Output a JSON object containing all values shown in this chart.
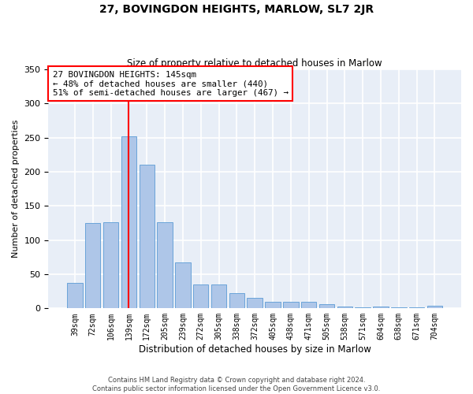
{
  "title": "27, BOVINGDON HEIGHTS, MARLOW, SL7 2JR",
  "subtitle": "Size of property relative to detached houses in Marlow",
  "xlabel": "Distribution of detached houses by size in Marlow",
  "ylabel": "Number of detached properties",
  "bar_labels": [
    "39sqm",
    "72sqm",
    "106sqm",
    "139sqm",
    "172sqm",
    "205sqm",
    "239sqm",
    "272sqm",
    "305sqm",
    "338sqm",
    "372sqm",
    "405sqm",
    "438sqm",
    "471sqm",
    "505sqm",
    "538sqm",
    "571sqm",
    "604sqm",
    "638sqm",
    "671sqm",
    "704sqm"
  ],
  "bar_values": [
    37,
    125,
    126,
    252,
    211,
    126,
    67,
    35,
    35,
    22,
    15,
    10,
    10,
    10,
    6,
    3,
    1,
    3,
    1,
    1,
    4
  ],
  "bar_color": "#aec6e8",
  "bar_edge_color": "#5b9bd5",
  "background_color": "#e8eef7",
  "grid_color": "#ffffff",
  "vline_x": 3.0,
  "vline_color": "red",
  "annotation_text": "27 BOVINGDON HEIGHTS: 145sqm\n← 48% of detached houses are smaller (440)\n51% of semi-detached houses are larger (467) →",
  "annotation_box_color": "red",
  "ylim": [
    0,
    350
  ],
  "yticks": [
    0,
    50,
    100,
    150,
    200,
    250,
    300,
    350
  ],
  "footer": "Contains HM Land Registry data © Crown copyright and database right 2024.\nContains public sector information licensed under the Open Government Licence v3.0."
}
